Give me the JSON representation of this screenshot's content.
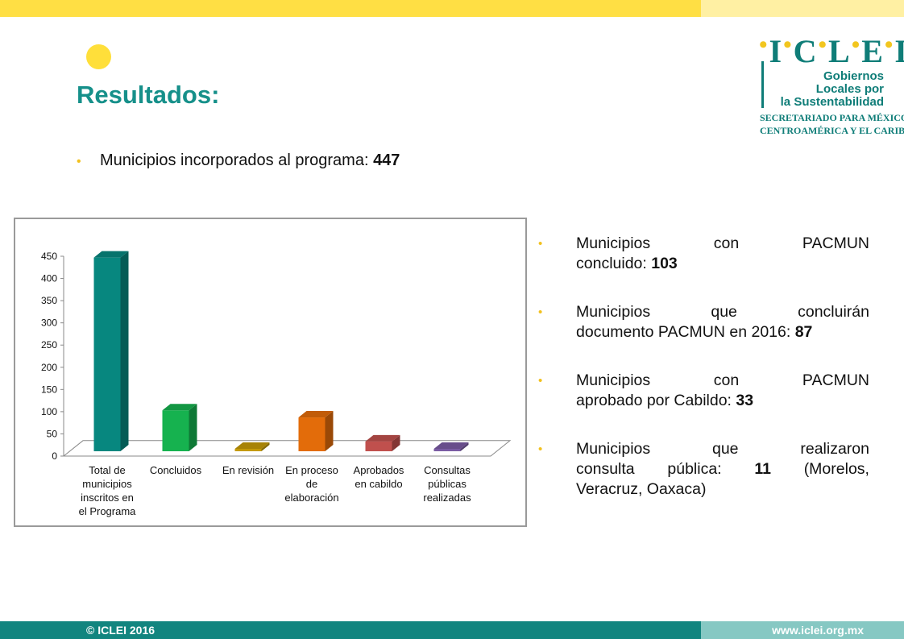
{
  "header": {
    "title": "Resultados:"
  },
  "summary": {
    "label": "Municipios incorporados al programa: ",
    "value": "447"
  },
  "logo": {
    "word": "ICLEI",
    "tagline_1": "Gobiernos",
    "tagline_2": "Locales por",
    "tagline_3": "la Sustentabilidad",
    "subtitle_1": "SECRETARIADO PARA MÉXICO,",
    "subtitle_2": "CENTROAMÉRICA Y EL CARIBE"
  },
  "bullets": [
    {
      "l1a": "Municipios",
      "l1b": "con",
      "l1c": "PACMUN",
      "l2": "concluido: ",
      "value": "103"
    },
    {
      "l1a": "Municipios",
      "l1b": "que",
      "l1c": "concluirán",
      "l2": "documento PACMUN en 2016: ",
      "value": "87"
    },
    {
      "l1a": "Municipios",
      "l1b": "con",
      "l1c": "PACMUN",
      "l2": "aprobado por Cabildo: ",
      "value": "33"
    },
    {
      "l1a": "Municipios",
      "l1b": "que",
      "l1c": "realizaron",
      "l2a": "consulta",
      "l2b": "pública:",
      "value": "11",
      "l2c": "(Morelos,",
      "l3": "Veracruz, Oaxaca)"
    }
  ],
  "chart_data": {
    "type": "bar",
    "style": "3d",
    "categories": [
      [
        "Total de",
        "municipios",
        "inscritos en",
        "el Programa"
      ],
      [
        "Concluidos"
      ],
      [
        "En revisión"
      ],
      [
        "En proceso",
        "de",
        "elaboración"
      ],
      [
        "Aprobados",
        "en cabildo"
      ],
      [
        "Consultas",
        "públicas",
        "realizadas"
      ]
    ],
    "values": [
      447,
      103,
      0,
      87,
      33,
      11
    ],
    "colors": [
      "#07877f",
      "#16b24f",
      "#c49a08",
      "#e36c0a",
      "#c0504d",
      "#7a5ba3"
    ],
    "ylim": [
      0,
      450
    ],
    "yticks": [
      0,
      50,
      100,
      150,
      200,
      250,
      300,
      350,
      400,
      450
    ],
    "title": "",
    "xlabel": "",
    "ylabel": "",
    "grid": false,
    "legend": "none"
  },
  "footer": {
    "copyright": "© ICLEI 2016",
    "url": "www.iclei.org.mx"
  }
}
